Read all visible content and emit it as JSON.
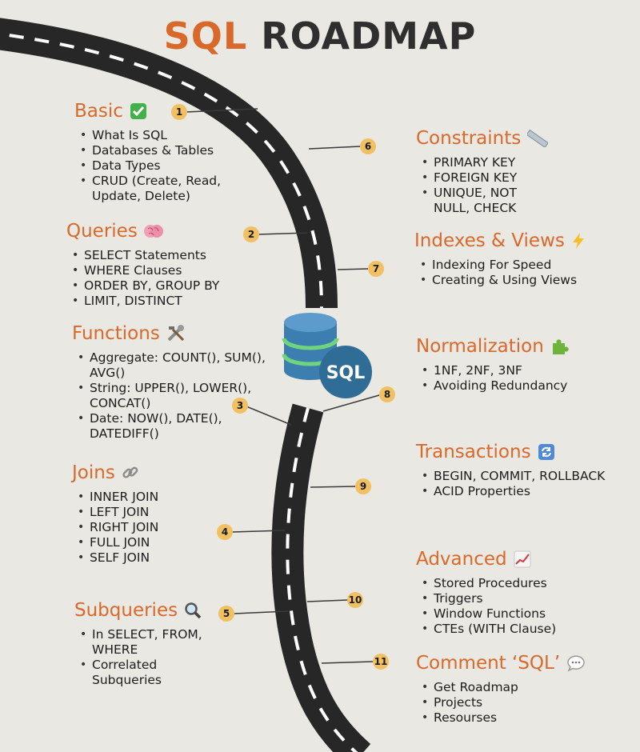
{
  "title": {
    "part1": "SQL",
    "part2": "ROADMAP"
  },
  "badge_label": "SQL",
  "colors": {
    "accent": "#d9692a",
    "road": "#272727",
    "marker": "#f1c063",
    "db_blue": "#3d7eb0",
    "db_green": "#6ed57d"
  },
  "sections": [
    {
      "id": "basic",
      "number": "1",
      "title": "Basic",
      "icon": "check-icon",
      "items": [
        "What Is SQL",
        "Databases & Tables",
        "Data Types",
        "CRUD (Create, Read,",
        "Update, Delete)"
      ]
    },
    {
      "id": "queries",
      "number": "2",
      "title": "Queries",
      "icon": "brain-icon",
      "items": [
        "SELECT Statements",
        "WHERE Clauses",
        "ORDER BY, GROUP BY",
        "LIMIT, DISTINCT"
      ]
    },
    {
      "id": "functions",
      "number": "3",
      "title": "Functions",
      "icon": "tools-icon",
      "items": [
        "Aggregate: COUNT(), SUM(),",
        "AVG()",
        "String: UPPER(), LOWER(),",
        "CONCAT()",
        "Date: NOW(), DATE(),",
        "DATEDIFF()"
      ]
    },
    {
      "id": "joins",
      "number": "4",
      "title": "Joins",
      "icon": "link-icon",
      "items": [
        "INNER JOIN",
        "LEFT JOIN",
        "RIGHT JOIN",
        "FULL JOIN",
        "SELF JOIN"
      ]
    },
    {
      "id": "subqueries",
      "number": "5",
      "title": "Subqueries",
      "icon": "magnifier-icon",
      "items": [
        "In SELECT, FROM,",
        "WHERE",
        "Correlated",
        "Subqueries"
      ]
    },
    {
      "id": "constraints",
      "number": "6",
      "title": "Constraints",
      "icon": "ruler-icon",
      "items": [
        "PRIMARY KEY",
        "FOREIGN KEY",
        "UNIQUE, NOT",
        "NULL, CHECK"
      ]
    },
    {
      "id": "indexes",
      "number": "7",
      "title": "Indexes & Views",
      "icon": "lightning-icon",
      "items": [
        "Indexing For Speed",
        "Creating & Using Views"
      ]
    },
    {
      "id": "normalization",
      "number": "8",
      "title": "Normalization",
      "icon": "puzzle-icon",
      "items": [
        "1NF, 2NF, 3NF",
        "Avoiding Redundancy"
      ]
    },
    {
      "id": "transactions",
      "number": "9",
      "title": "Transactions",
      "icon": "refresh-icon",
      "items": [
        "BEGIN, COMMIT, ROLLBACK",
        "ACID Properties"
      ]
    },
    {
      "id": "advanced",
      "number": "10",
      "title": "Advanced",
      "icon": "chart-icon",
      "items": [
        "Stored Procedures",
        "Triggers",
        "Window Functions",
        "CTEs (WITH Clause)"
      ]
    },
    {
      "id": "comment",
      "number": "11",
      "title": "Comment ‘SQL’",
      "icon": "speech-bubble-icon",
      "items": [
        "Get Roadmap",
        "Projects",
        "Resourses"
      ]
    }
  ]
}
